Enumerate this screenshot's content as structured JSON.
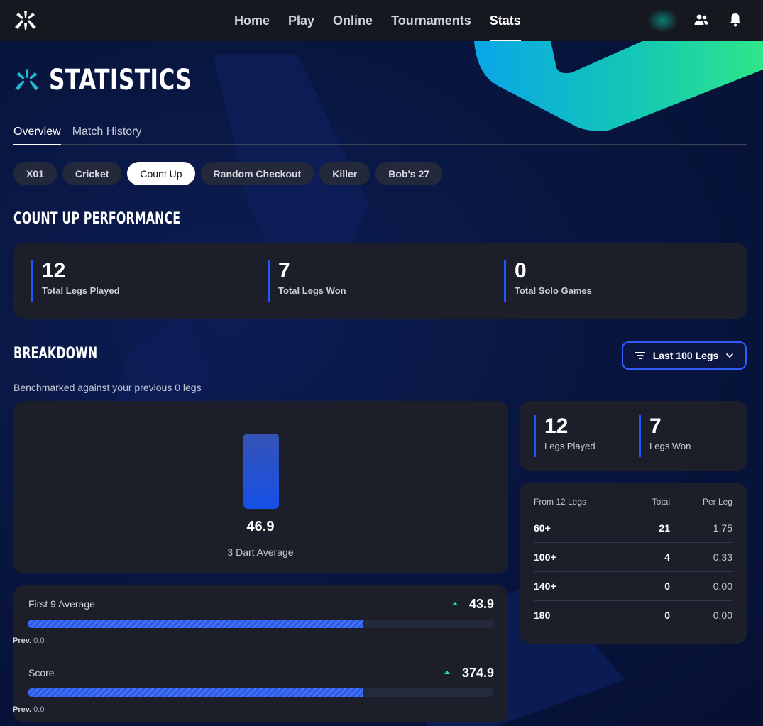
{
  "nav": {
    "items": [
      "Home",
      "Play",
      "Online",
      "Tournaments",
      "Stats"
    ],
    "active": "Stats"
  },
  "page": {
    "title": "STATISTICS"
  },
  "tabs": [
    {
      "label": "Overview",
      "active": true
    },
    {
      "label": "Match History",
      "active": false
    }
  ],
  "game_modes": [
    {
      "label": "X01",
      "active": false
    },
    {
      "label": "Cricket",
      "active": false
    },
    {
      "label": "Count Up",
      "active": true
    },
    {
      "label": "Random Checkout",
      "active": false
    },
    {
      "label": "Killer",
      "active": false
    },
    {
      "label": "Bob's 27",
      "active": false
    }
  ],
  "performance": {
    "title": "COUNT UP PERFORMANCE",
    "stats": [
      {
        "value": "12",
        "label": "Total Legs Played"
      },
      {
        "value": "7",
        "label": "Total Legs Won"
      },
      {
        "value": "0",
        "label": "Total Solo Games"
      }
    ]
  },
  "breakdown": {
    "title": "BREAKDOWN",
    "filter_label": "Last 100 Legs",
    "benchmark_text": "Benchmarked against your previous 0 legs",
    "three_dart_average": {
      "value": "46.9",
      "label": "3 Dart Average"
    },
    "progress": [
      {
        "label": "First 9 Average",
        "value": "43.9",
        "prev_label": "Prev.",
        "prev_value": "0.0",
        "fill_fraction": 0.72
      },
      {
        "label": "Score",
        "value": "374.9",
        "prev_label": "Prev.",
        "prev_value": "0.0",
        "fill_fraction": 0.72
      }
    ],
    "legs": [
      {
        "value": "12",
        "label": "Legs Played"
      },
      {
        "value": "7",
        "label": "Legs Won"
      }
    ],
    "table": {
      "headers": [
        "From 12 Legs",
        "Total",
        "Per Leg"
      ],
      "rows": [
        [
          "60+",
          "21",
          "1.75"
        ],
        [
          "100+",
          "4",
          "0.33"
        ],
        [
          "140+",
          "0",
          "0.00"
        ],
        [
          "180",
          "0",
          "0.00"
        ]
      ]
    }
  },
  "colors": {
    "accent": "#1f55ff",
    "card": "#1c1f29",
    "topbar": "#16181f",
    "up_arrow": "#2be29b"
  }
}
